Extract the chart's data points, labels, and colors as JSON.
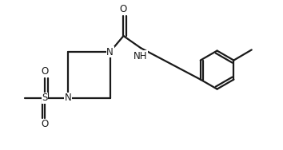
{
  "bg_color": "#ffffff",
  "line_color": "#1a1a1a",
  "line_width": 1.6,
  "font_size": 8.5,
  "figsize": [
    3.54,
    1.88
  ],
  "dpi": 100,
  "xlim": [
    -0.05,
    1.05
  ],
  "ylim": [
    0.0,
    0.53
  ]
}
